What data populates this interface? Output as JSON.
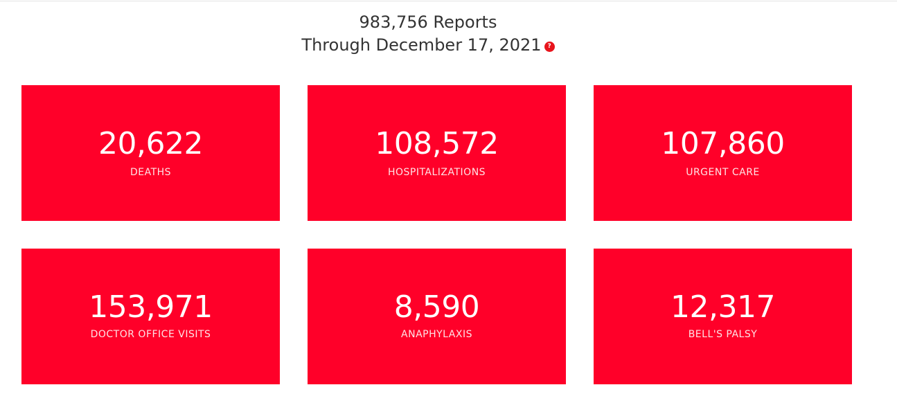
{
  "header": {
    "report_count": "983,756 Reports",
    "through_date": "Through December 17, 2021",
    "help_icon": "question-mark-icon",
    "help_glyph": "?"
  },
  "colors": {
    "card_background": "#ff0029",
    "help_icon": "#e8141c"
  },
  "stats": [
    {
      "value": "20,622",
      "label": "DEATHS"
    },
    {
      "value": "108,572",
      "label": "HOSPITALIZATIONS"
    },
    {
      "value": "107,860",
      "label": "URGENT CARE"
    },
    {
      "value": "153,971",
      "label": "DOCTOR OFFICE VISITS"
    },
    {
      "value": "8,590",
      "label": "ANAPHYLAXIS"
    },
    {
      "value": "12,317",
      "label": "BELL'S PALSY"
    }
  ]
}
